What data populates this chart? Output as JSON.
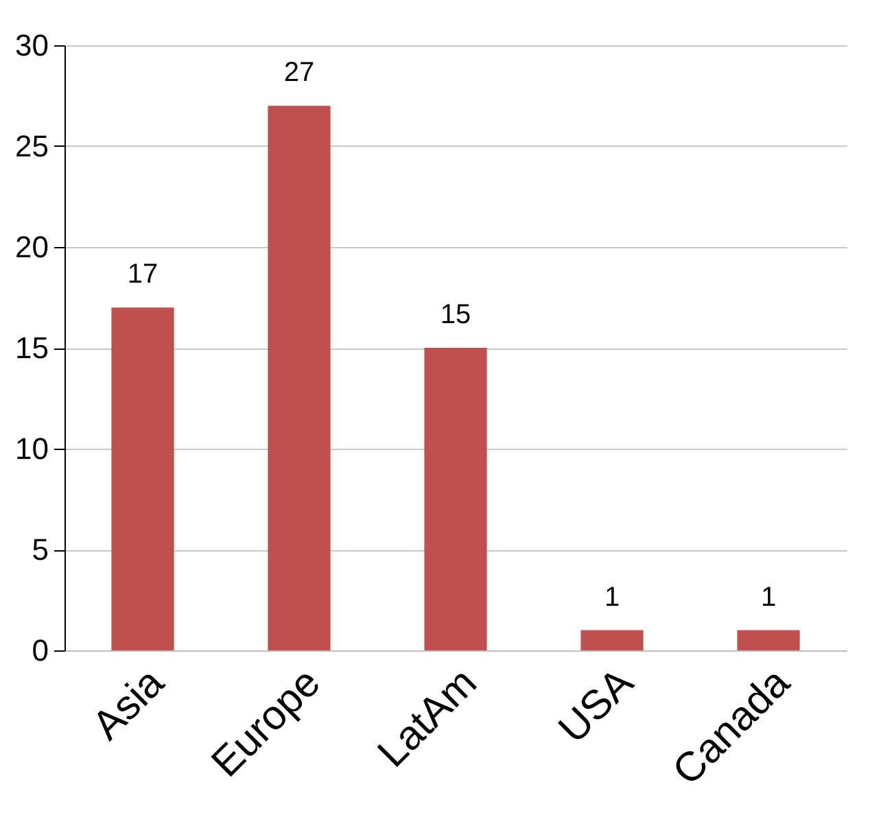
{
  "chart_data": {
    "type": "bar",
    "categories": [
      "Asia",
      "Europe",
      "LatAm",
      "USA",
      "Canada"
    ],
    "values": [
      17,
      27,
      15,
      1,
      1
    ],
    "color": "#c0504d",
    "ylim": [
      0,
      30
    ],
    "yticks": [
      0,
      5,
      10,
      15,
      20,
      25,
      30
    ],
    "grid": "y",
    "data_labels": true
  }
}
